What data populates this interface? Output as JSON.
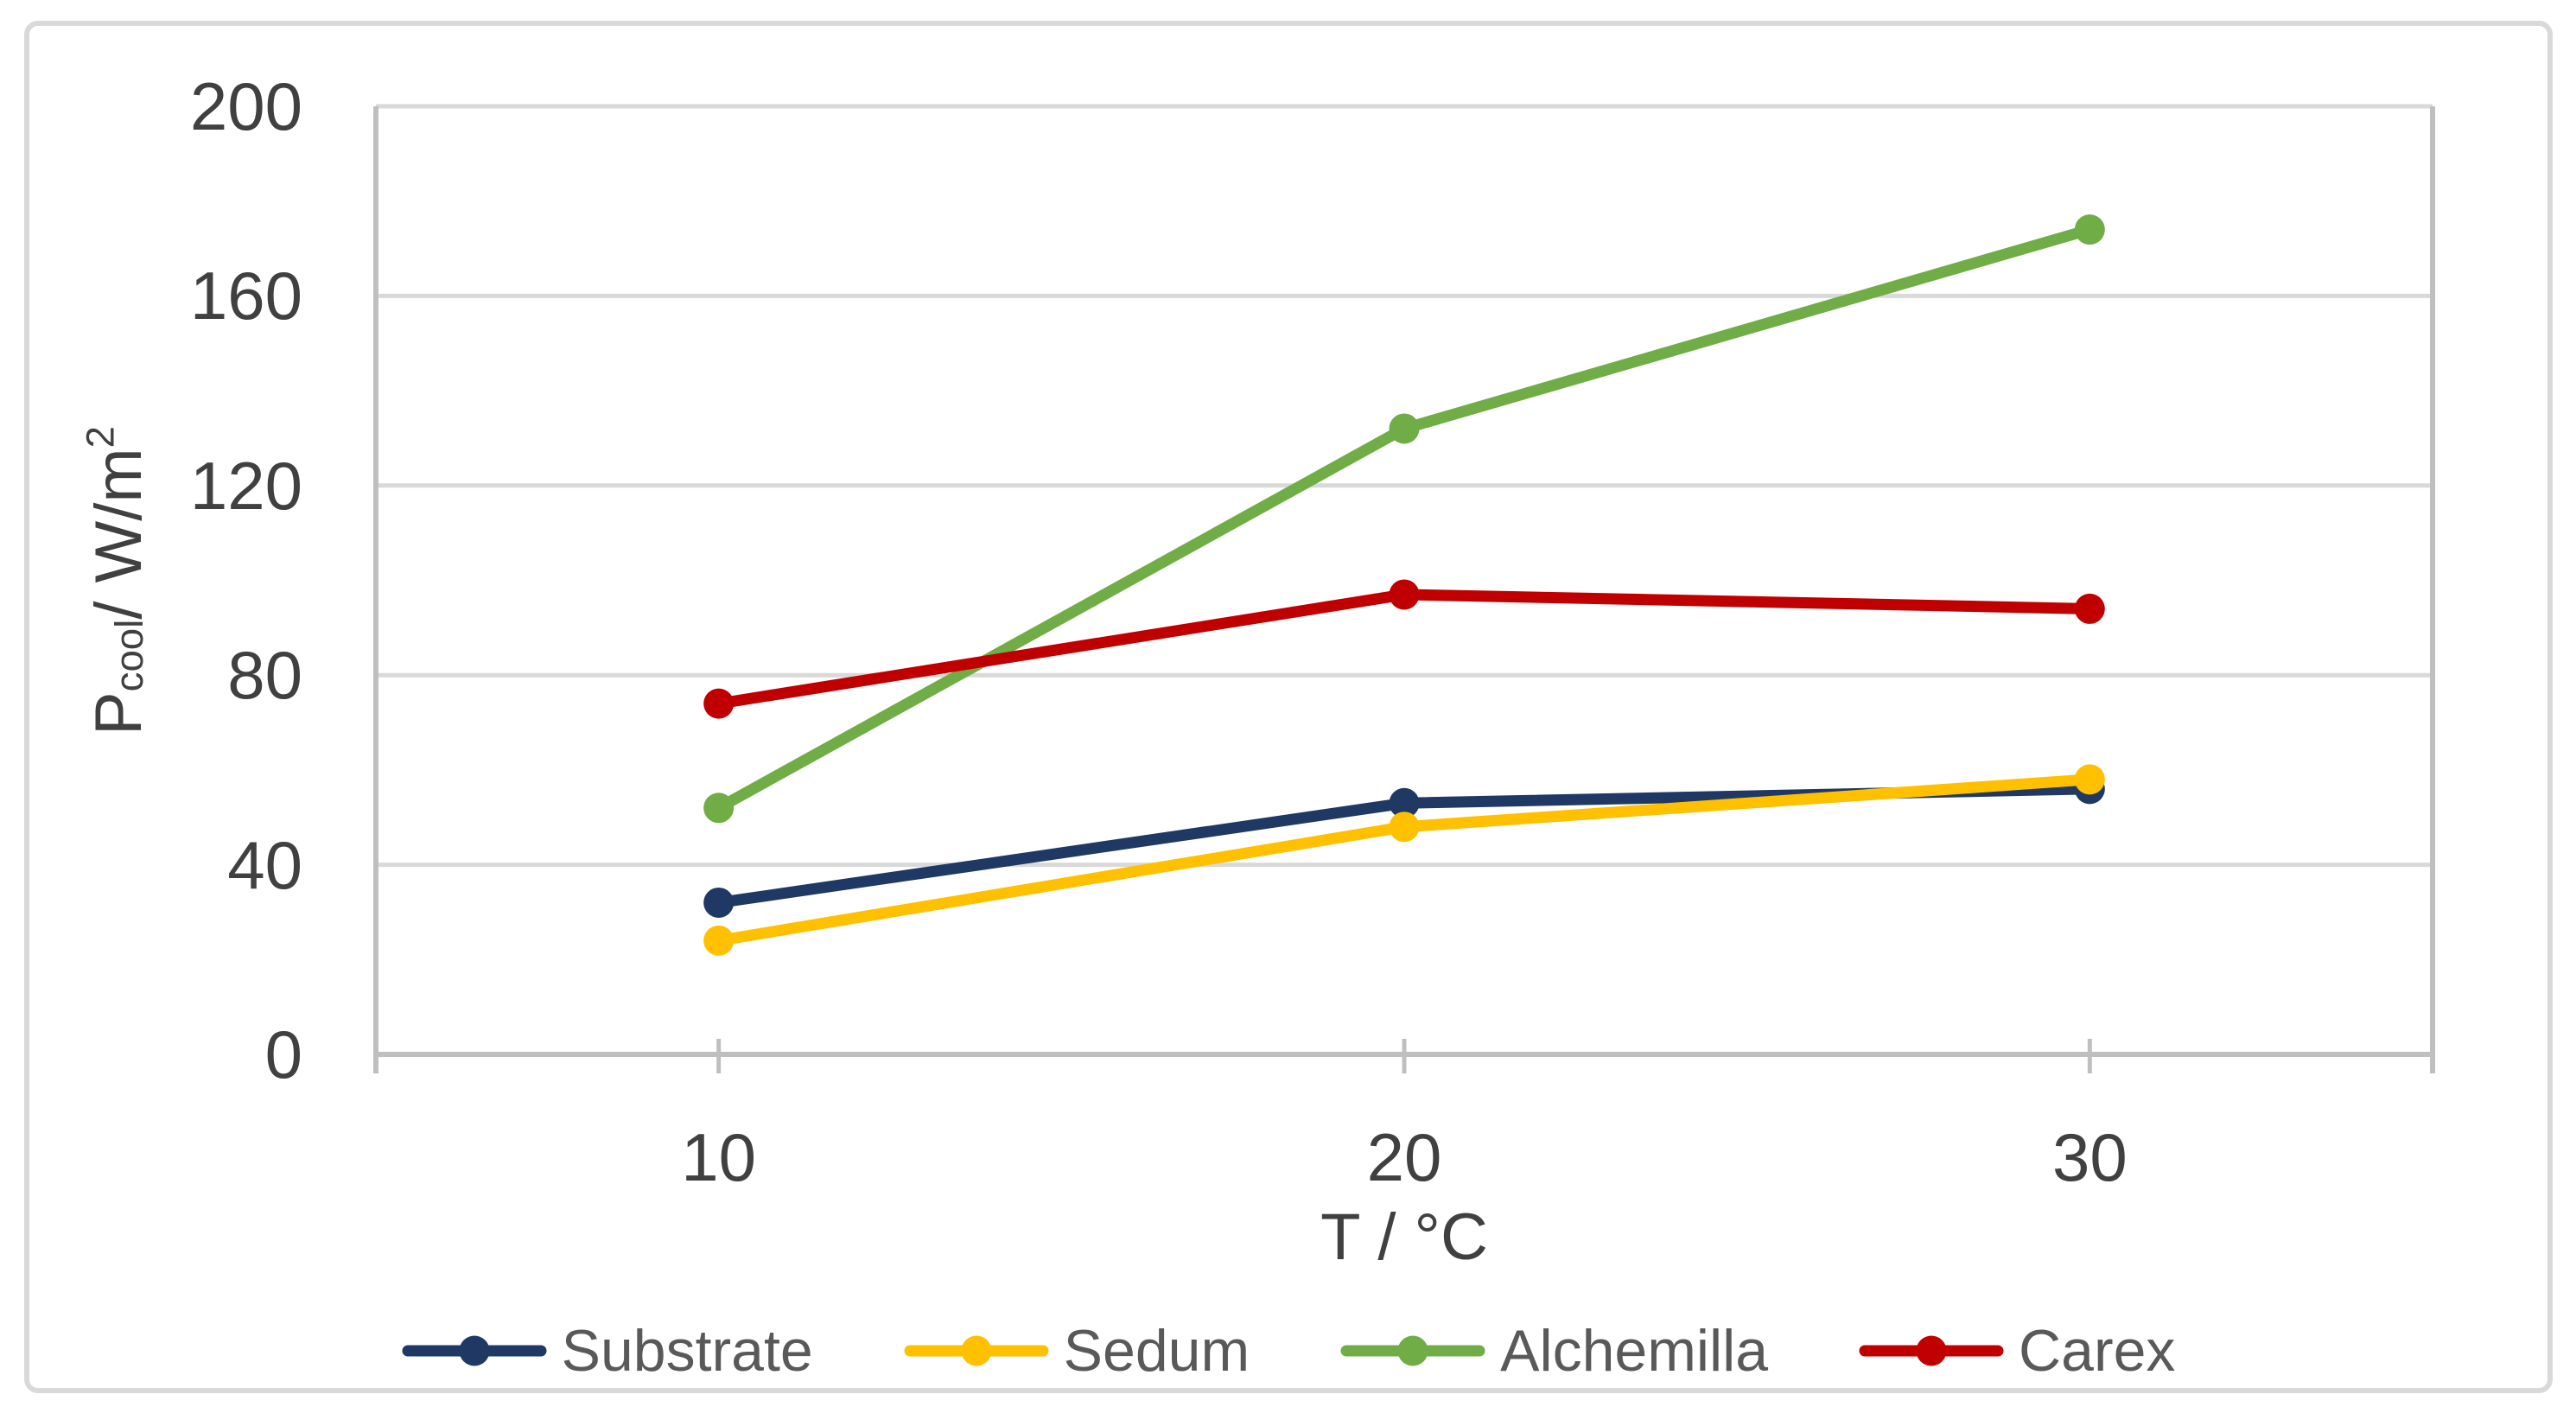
{
  "chart_data": {
    "type": "line",
    "x": [
      10,
      20,
      30
    ],
    "x_labels": [
      "10",
      "20",
      "30"
    ],
    "series": [
      {
        "name": "Substrate",
        "color": "#1F3864",
        "values": [
          32,
          53,
          56
        ]
      },
      {
        "name": "Sedum",
        "color": "#FFC000",
        "values": [
          24,
          48,
          58
        ]
      },
      {
        "name": "Alchemilla",
        "color": "#70AD47",
        "values": [
          52,
          132,
          174
        ]
      },
      {
        "name": "Carex",
        "color": "#C00000",
        "values": [
          74,
          97,
          94
        ]
      }
    ],
    "xlabel": "T / °C",
    "ylabel_plain": "P_cool / W/m²",
    "ylabel_rich": {
      "base": "P",
      "sub": "cool",
      "mid": " / W/m",
      "sup": "2"
    },
    "ylim": [
      0,
      200
    ],
    "yticks": [
      0,
      40,
      80,
      120,
      160,
      200
    ],
    "grid": "horizontal",
    "legend_position": "bottom-center",
    "marker": "circle"
  },
  "colors": {
    "gridline": "#D9D9D9",
    "axis_line": "#BFBFBF",
    "tick_label_text": "#404040",
    "axis_title_text": "#404040",
    "legend_text": "#595959",
    "frame_border": "#D9D9D9",
    "background": "#FFFFFF"
  }
}
